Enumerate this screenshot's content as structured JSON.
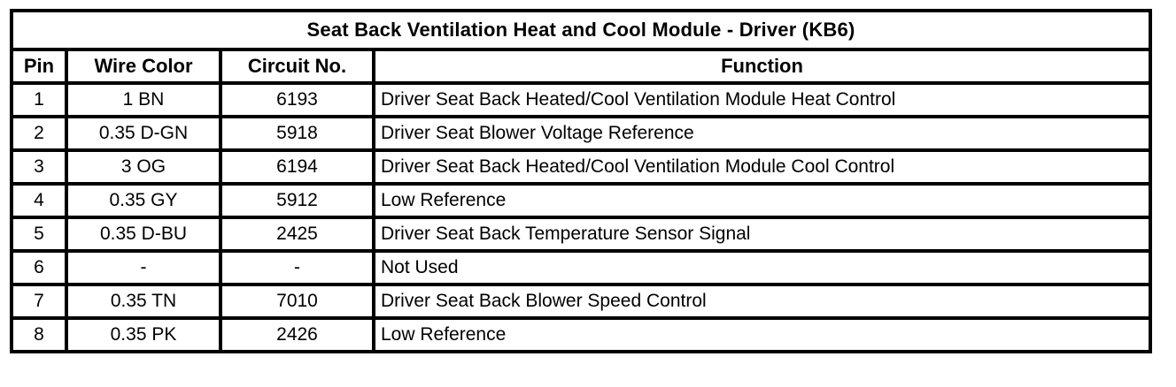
{
  "table": {
    "title": "Seat Back Ventilation Heat and Cool Module - Driver (KB6)",
    "columns": [
      "Pin",
      "Wire Color",
      "Circuit No.",
      "Function"
    ],
    "rows": [
      {
        "pin": "1",
        "wire_color": "1 BN",
        "circuit_no": "6193",
        "function": "Driver Seat Back Heated/Cool Ventilation Module Heat Control"
      },
      {
        "pin": "2",
        "wire_color": "0.35 D-GN",
        "circuit_no": "5918",
        "function": "Driver Seat Blower Voltage Reference"
      },
      {
        "pin": "3",
        "wire_color": "3 OG",
        "circuit_no": "6194",
        "function": "Driver Seat Back Heated/Cool Ventilation Module Cool Control"
      },
      {
        "pin": "4",
        "wire_color": "0.35 GY",
        "circuit_no": "5912",
        "function": "Low Reference"
      },
      {
        "pin": "5",
        "wire_color": "0.35 D-BU",
        "circuit_no": "2425",
        "function": "Driver Seat Back Temperature Sensor Signal"
      },
      {
        "pin": "6",
        "wire_color": "-",
        "circuit_no": "-",
        "function": "Not Used"
      },
      {
        "pin": "7",
        "wire_color": "0.35 TN",
        "circuit_no": "7010",
        "function": "Driver Seat Back Blower Speed Control"
      },
      {
        "pin": "8",
        "wire_color": "0.35 PK",
        "circuit_no": "2426",
        "function": "Low Reference"
      }
    ],
    "colors": {
      "border": "#000000",
      "text": "#000000",
      "background": "#ffffff"
    }
  }
}
